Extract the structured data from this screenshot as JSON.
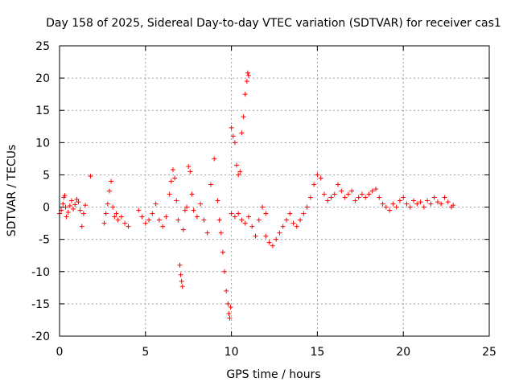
{
  "chart_data": {
    "type": "scatter",
    "title": "Day 158 of 2025, Sidereal Day-to-day VTEC variation (SDTVAR) for receiver cas1",
    "xlabel": "GPS time / hours",
    "ylabel": "SDTVAR / TECUs",
    "xlim": [
      0,
      25
    ],
    "ylim": [
      -20,
      25
    ],
    "xticks": [
      0,
      5,
      10,
      15,
      20,
      25
    ],
    "yticks": [
      -20,
      -15,
      -10,
      -5,
      0,
      5,
      10,
      15,
      20,
      25
    ],
    "grid": true,
    "marker": "+",
    "series": [
      {
        "name": "SDTVAR",
        "color": "#ff0000",
        "x": [
          0.0,
          0.1,
          0.2,
          0.25,
          0.3,
          0.35,
          0.4,
          0.5,
          0.6,
          0.7,
          0.8,
          0.9,
          1.0,
          1.1,
          1.2,
          1.3,
          1.4,
          1.5,
          1.8,
          2.6,
          2.7,
          2.8,
          2.9,
          3.0,
          3.1,
          3.2,
          3.3,
          3.4,
          3.6,
          3.8,
          4.0,
          4.6,
          4.8,
          5.0,
          5.2,
          5.4,
          5.6,
          5.8,
          6.0,
          6.2,
          6.4,
          6.5,
          6.6,
          6.7,
          6.8,
          6.9,
          7.0,
          7.05,
          7.1,
          7.15,
          7.2,
          7.3,
          7.4,
          7.5,
          7.6,
          7.7,
          7.8,
          8.0,
          8.2,
          8.4,
          8.6,
          8.8,
          9.0,
          9.2,
          9.3,
          9.4,
          9.5,
          9.6,
          9.7,
          9.8,
          9.85,
          9.9,
          9.95,
          10.0,
          10.0,
          10.1,
          10.2,
          10.3,
          10.4,
          10.5,
          10.6,
          10.7,
          10.8,
          10.9,
          10.95,
          11.0,
          10.2,
          10.4,
          10.6,
          10.8,
          11.0,
          11.2,
          11.4,
          11.6,
          11.8,
          12.0,
          12.0,
          12.2,
          12.4,
          12.6,
          12.8,
          13.0,
          13.2,
          13.4,
          13.6,
          13.8,
          14.0,
          14.2,
          14.4,
          14.6,
          14.8,
          15.0,
          15.2,
          15.4,
          15.6,
          15.8,
          16.0,
          16.2,
          16.4,
          16.6,
          16.8,
          17.0,
          17.2,
          17.4,
          17.6,
          17.8,
          18.0,
          18.2,
          18.4,
          18.6,
          18.8,
          19.0,
          19.2,
          19.4,
          19.6,
          19.8,
          20.0,
          20.2,
          20.4,
          20.6,
          20.8,
          21.0,
          21.2,
          21.4,
          21.6,
          21.8,
          22.0,
          22.2,
          22.4,
          22.6,
          22.8,
          22.9
        ],
        "y": [
          -1.0,
          -0.5,
          0.5,
          1.5,
          1.8,
          0.0,
          -1.5,
          -0.8,
          0.2,
          1.0,
          -0.3,
          0.4,
          1.2,
          0.8,
          -0.5,
          -3.0,
          -1.0,
          0.3,
          4.8,
          -2.5,
          -1.0,
          0.5,
          2.5,
          4.0,
          0.0,
          -1.5,
          -1.0,
          -2.0,
          -1.5,
          -2.5,
          -3.0,
          -0.5,
          -1.5,
          -2.5,
          -2.0,
          -1.0,
          0.5,
          -2.0,
          -3.0,
          -1.5,
          2.0,
          4.0,
          5.8,
          4.5,
          1.0,
          -2.0,
          -9.0,
          -10.5,
          -11.5,
          -12.3,
          -3.5,
          -0.5,
          0.0,
          6.3,
          5.5,
          2.0,
          -0.5,
          -1.5,
          0.5,
          -2.0,
          -4.0,
          3.5,
          7.5,
          1.0,
          -2.0,
          -4.0,
          -7.0,
          -10.0,
          -13.0,
          -15.0,
          -16.5,
          -17.2,
          -15.5,
          -1.0,
          12.3,
          11.0,
          10.0,
          6.5,
          5.0,
          5.5,
          11.5,
          14.0,
          17.5,
          19.5,
          20.8,
          20.4,
          -1.5,
          -1.0,
          -2.0,
          -2.5,
          -1.5,
          -3.0,
          -4.5,
          -2.0,
          0.0,
          -1.0,
          -4.5,
          -5.5,
          -6.0,
          -5.0,
          -4.0,
          -3.0,
          -2.0,
          -1.0,
          -2.5,
          -3.0,
          -2.0,
          -1.0,
          0.0,
          1.5,
          3.5,
          5.0,
          4.5,
          2.0,
          1.0,
          1.5,
          2.0,
          3.5,
          2.5,
          1.5,
          2.0,
          2.5,
          1.0,
          1.5,
          2.0,
          1.5,
          2.0,
          2.5,
          2.8,
          1.5,
          0.5,
          0.0,
          -0.5,
          0.5,
          0.0,
          1.0,
          1.5,
          0.5,
          0.0,
          1.0,
          0.5,
          0.8,
          0.0,
          1.0,
          0.5,
          1.5,
          0.8,
          0.5,
          1.5,
          0.8,
          0.0,
          0.3
        ]
      }
    ]
  }
}
